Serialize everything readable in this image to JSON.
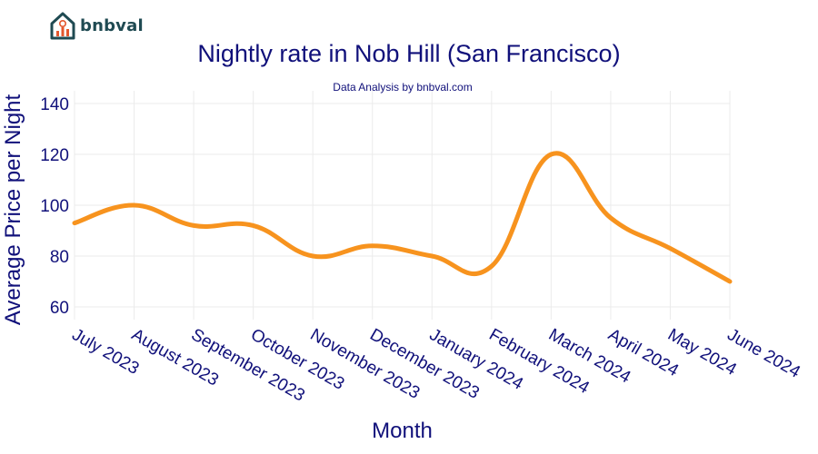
{
  "brand": {
    "logo_text": "bnbval",
    "logo_icon": "house-chart-icon"
  },
  "chart_data": {
    "type": "line",
    "title": "Nightly rate in Nob Hill (San Francisco)",
    "subtitle": "Data Analysis by bnbval.com",
    "xlabel": "Month",
    "ylabel": "Average Price per Night",
    "categories": [
      "July 2023",
      "August 2023",
      "September 2023",
      "October 2023",
      "November 2023",
      "December 2023",
      "January 2024",
      "February 2024",
      "March 2024",
      "April 2024",
      "May 2024",
      "June 2024"
    ],
    "series": [
      {
        "values": [
          93,
          100,
          92,
          92,
          80,
          84,
          80,
          76,
          120,
          95,
          83,
          70
        ],
        "color": "#f7931e"
      }
    ],
    "ylim": [
      55,
      145
    ],
    "yticks": [
      60,
      80,
      100,
      120,
      140
    ],
    "grid": true,
    "legend": "none"
  }
}
